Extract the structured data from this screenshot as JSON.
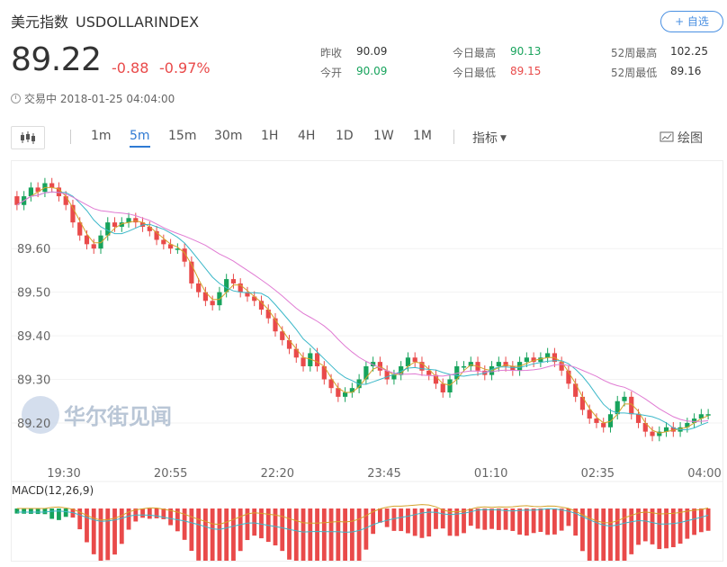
{
  "header": {
    "name": "美元指数",
    "code": "USDOLLARINDEX",
    "watch_label": "+ 自选",
    "price": "89.22",
    "change": "-0.88",
    "change_pct": "-0.97%",
    "status": "交易中 2018-01-25 04:04:00"
  },
  "stats": [
    {
      "label": "昨收",
      "value": "90.09",
      "color": "#333333"
    },
    {
      "label": "今日最高",
      "value": "90.13",
      "color": "#17a35c"
    },
    {
      "label": "52周最高",
      "value": "102.25",
      "color": "#333333"
    },
    {
      "label": "今开",
      "value": "90.09",
      "color": "#17a35c"
    },
    {
      "label": "今日最低",
      "value": "89.15",
      "color": "#e94a4a"
    },
    {
      "label": "52周最低",
      "value": "89.16",
      "color": "#333333"
    }
  ],
  "toolbar": {
    "chart_type_icon": "candlestick-icon",
    "intervals": [
      "1m",
      "5m",
      "15m",
      "30m",
      "1H",
      "4H",
      "1D",
      "1W",
      "1M"
    ],
    "active_interval": "5m",
    "indicator_label": "指标",
    "draw_label": "绘图"
  },
  "colors": {
    "up": "#17a35c",
    "down": "#e94a4a",
    "ma_short": "#d4a32a",
    "ma_mid": "#3cb8c9",
    "ma_long": "#e07bd3",
    "accent": "#2f7ad3"
  },
  "watermark": "华尔街见闻",
  "chart_data": {
    "type": "candlestick",
    "y_ticks": [
      "89.60",
      "89.50",
      "89.40",
      "89.30",
      "89.20"
    ],
    "ylim": [
      89.14,
      89.78
    ],
    "x_ticks": [
      "19:30",
      "20:55",
      "22:20",
      "23:45",
      "01:10",
      "02:35",
      "04:00"
    ],
    "macd_label": "MACD(12,26,9)",
    "close_prices": [
      89.7,
      89.72,
      89.74,
      89.73,
      89.75,
      89.74,
      89.72,
      89.7,
      89.66,
      89.63,
      89.61,
      89.6,
      89.63,
      89.66,
      89.65,
      89.66,
      89.67,
      89.66,
      89.65,
      89.64,
      89.62,
      89.61,
      89.6,
      89.6,
      89.57,
      89.52,
      89.5,
      89.48,
      89.47,
      89.5,
      89.53,
      89.52,
      89.5,
      89.49,
      89.48,
      89.46,
      89.44,
      89.41,
      89.39,
      89.37,
      89.35,
      89.33,
      89.36,
      89.33,
      89.3,
      89.28,
      89.26,
      89.27,
      89.28,
      89.3,
      89.33,
      89.34,
      89.32,
      89.3,
      89.31,
      89.33,
      89.35,
      89.34,
      89.32,
      89.31,
      89.29,
      89.27,
      89.3,
      89.33,
      89.33,
      89.34,
      89.32,
      89.31,
      89.33,
      89.34,
      89.33,
      89.32,
      89.34,
      89.35,
      89.34,
      89.35,
      89.36,
      89.34,
      89.32,
      89.29,
      89.26,
      89.23,
      89.21,
      89.2,
      89.19,
      89.22,
      89.25,
      89.26,
      89.22,
      89.2,
      89.18,
      89.17,
      89.18,
      89.19,
      89.18,
      89.19,
      89.2,
      89.21,
      89.22,
      89.22
    ]
  }
}
